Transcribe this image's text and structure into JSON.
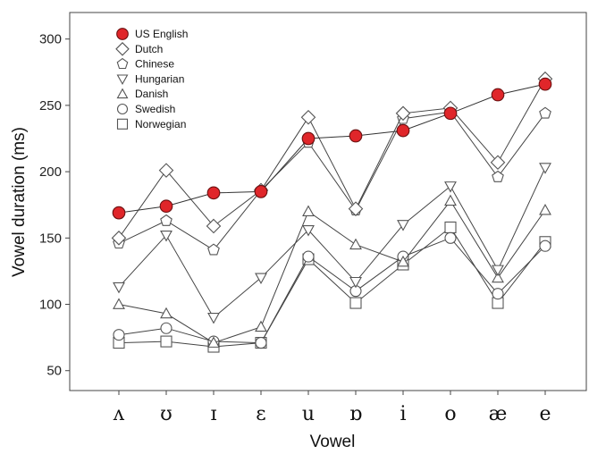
{
  "chart_data": {
    "type": "line",
    "xlabel": "Vowel",
    "ylabel": "Vowel duration (ms)",
    "ylim": [
      35,
      320
    ],
    "yticks": [
      50,
      100,
      150,
      200,
      250,
      300
    ],
    "categories": [
      "ʌ",
      "ʊ",
      "ɪ",
      "ɛ",
      "u",
      "ɒ",
      "i",
      "o",
      "æ",
      "e"
    ],
    "legend_position": "top-left",
    "grid": false,
    "series": [
      {
        "name": "US English",
        "marker": "circle-filled",
        "color": "#e0262a",
        "values": [
          169,
          174,
          184,
          185,
          225,
          227,
          231,
          244,
          258,
          266
        ]
      },
      {
        "name": "Dutch",
        "marker": "diamond",
        "color": "#555555",
        "values": [
          150,
          201,
          159,
          186,
          241,
          172,
          244,
          248,
          207,
          270
        ]
      },
      {
        "name": "Chinese",
        "marker": "pentagon",
        "color": "#555555",
        "values": [
          146,
          163,
          141,
          186,
          222,
          171,
          240,
          245,
          196,
          244
        ]
      },
      {
        "name": "Hungarian",
        "marker": "triangle-down",
        "color": "#555555",
        "values": [
          113,
          152,
          90,
          120,
          156,
          117,
          160,
          189,
          126,
          203
        ]
      },
      {
        "name": "Danish",
        "marker": "triangle-up",
        "color": "#555555",
        "values": [
          100,
          93,
          71,
          83,
          170,
          145,
          132,
          178,
          120,
          171
        ]
      },
      {
        "name": "Swedish",
        "marker": "circle",
        "color": "#555555",
        "values": [
          77,
          82,
          72,
          71,
          136,
          110,
          136,
          150,
          108,
          144
        ]
      },
      {
        "name": "Norwegian",
        "marker": "square",
        "color": "#555555",
        "values": [
          71,
          72,
          68,
          71,
          134,
          101,
          130,
          158,
          101,
          147
        ]
      }
    ]
  }
}
